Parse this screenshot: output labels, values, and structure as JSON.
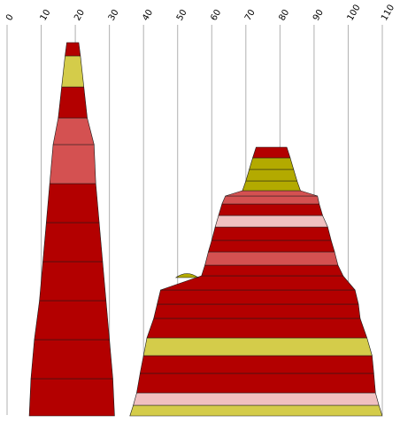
{
  "chart_data": {
    "type": "area",
    "x_axis": {
      "range": [
        0,
        110
      ],
      "ticks": [
        0,
        10,
        20,
        30,
        40,
        50,
        60,
        70,
        80,
        90,
        100,
        110
      ],
      "tick_label_rotation": "-60deg",
      "position": "top",
      "grid": true
    },
    "y_axis": {
      "visible": false
    },
    "colors": {
      "red": "#b30000",
      "rose": "#d45151",
      "pink": "#f0c0c0",
      "olive": "#b3aa00",
      "lime": "#d4cc4a"
    },
    "shapes": [
      {
        "name": "left-stack",
        "bands": [
          {
            "color": "red",
            "bottom": {
              "left": 6.5,
              "right": 31.5
            }
          },
          {
            "color": "red",
            "bottom": {
              "left": 7.0,
              "right": 31.0
            }
          },
          {
            "color": "red",
            "bottom": {
              "left": 8.0,
              "right": 30.0
            }
          },
          {
            "color": "red",
            "bottom": {
              "left": 9.5,
              "right": 29.0
            }
          },
          {
            "color": "red",
            "bottom": {
              "left": 10.5,
              "right": 28.0
            }
          },
          {
            "color": "red",
            "bottom": {
              "left": 11.5,
              "right": 27.0
            }
          },
          {
            "color": "rose",
            "bottom": {
              "left": 12.5,
              "right": 26.0
            }
          },
          {
            "color": "rose",
            "bottom": {
              "left": 13.5,
              "right": 25.5
            }
          },
          {
            "color": "red",
            "bottom": {
              "left": 15.0,
              "right": 23.5
            }
          },
          {
            "color": "lime",
            "bottom": {
              "left": 16.0,
              "right": 22.5
            }
          },
          {
            "color": "red",
            "bottom": {
              "left": 17.0,
              "right": 21.5
            }
          }
        ],
        "top": {
          "left": 17.5,
          "right": 21.0
        }
      },
      {
        "name": "right-stack",
        "bands": [
          {
            "color": "lime",
            "bottom": {
              "left": 36.0,
              "right": 110.0
            }
          },
          {
            "color": "pink",
            "bottom": {
              "left": 37.0,
              "right": 109.0
            }
          },
          {
            "color": "red",
            "bottom": {
              "left": 38.0,
              "right": 108.0
            }
          },
          {
            "color": "red",
            "bottom": {
              "left": 39.0,
              "right": 107.5
            }
          },
          {
            "color": "lime",
            "bottom": {
              "left": 40.0,
              "right": 107.0
            }
          },
          {
            "color": "red",
            "bottom": {
              "left": 41.0,
              "right": 105.5
            }
          },
          {
            "color": "red",
            "bottom": {
              "left": 43.0,
              "right": 103.5
            }
          },
          {
            "color": "red",
            "bottom": {
              "left": 44.0,
              "right": 103.0
            }
          },
          {
            "color": "red",
            "bottom": {
              "left": 45.0,
              "right": 102.0
            }
          },
          {
            "color": "red",
            "bottom": {
              "left": 57.0,
              "right": 98.5
            }
          },
          {
            "color": "rose",
            "bottom": {
              "left": 58.0,
              "right": 97.0
            }
          },
          {
            "color": "red",
            "bottom": {
              "left": 59.0,
              "right": 96.0
            }
          },
          {
            "color": "red",
            "bottom": {
              "left": 60.0,
              "right": 95.0
            }
          },
          {
            "color": "pink",
            "bottom": {
              "left": 61.0,
              "right": 94.0
            }
          },
          {
            "color": "red",
            "bottom": {
              "left": 62.0,
              "right": 92.5
            }
          },
          {
            "color": "rose",
            "bottom": {
              "left": 63.0,
              "right": 91.5
            }
          },
          {
            "color": "rose",
            "bottom": {
              "left": 64.0,
              "right": 91.0
            }
          },
          {
            "color": "olive",
            "bottom": {
              "left": 69.0,
              "right": 86.0
            }
          },
          {
            "color": "olive",
            "bottom": {
              "left": 70.0,
              "right": 85.0
            }
          },
          {
            "color": "olive",
            "bottom": {
              "left": 71.0,
              "right": 84.0
            }
          },
          {
            "color": "red",
            "bottom": {
              "left": 72.0,
              "right": 83.0
            }
          }
        ],
        "top": {
          "left": 73.0,
          "right": 82.0
        }
      }
    ]
  }
}
